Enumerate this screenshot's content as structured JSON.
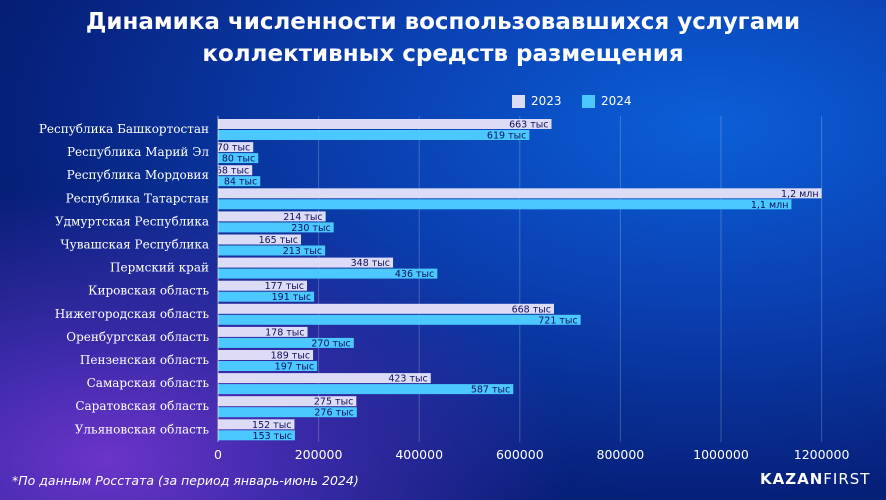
{
  "title_line1": "Динамика численности воспользовавшихся услугами",
  "title_line2": "коллективных средств размещения",
  "footnote": "*По данным Росстата (за период январь-июнь 2024)",
  "logo": {
    "part1": "KAZAN",
    "part2": "FIRST"
  },
  "colors": {
    "s2023": "#dcdcf7",
    "s2024": "#4bc8ff"
  },
  "chart_data": {
    "type": "bar",
    "orientation": "horizontal",
    "categories": [
      "Республика Башкортостан",
      "Республика Марий Эл",
      "Республика Мордовия",
      "Республика Татарстан",
      "Удмуртская Республика",
      "Чувашская Республика",
      "Пермский край",
      "Кировская область",
      "Нижегородская область",
      "Оренбургская область",
      "Пензенская область",
      "Самарская область",
      "Саратовская область",
      "Ульяновская область"
    ],
    "series": [
      {
        "name": "2023",
        "values": [
          663000,
          70000,
          68000,
          1200000,
          214000,
          165000,
          348000,
          177000,
          668000,
          178000,
          189000,
          423000,
          275000,
          152000
        ],
        "labels": [
          "663 тыс",
          "70 тыс",
          "68 тыс",
          "1,2 млн",
          "214 тыс",
          "165 тыс",
          "348 тыс",
          "177 тыс",
          "668 тыс",
          "178 тыс",
          "189 тыс",
          "423 тыс",
          "275 тыс",
          "152 тыс"
        ]
      },
      {
        "name": "2024",
        "values": [
          619000,
          80000,
          84000,
          1140000,
          230000,
          213000,
          436000,
          191000,
          721000,
          270000,
          197000,
          587000,
          276000,
          153000
        ],
        "labels": [
          "619 тыс",
          "80 тыс",
          "84 тыс",
          "1,1 млн",
          "230 тыс",
          "213 тыс",
          "436 тыс",
          "191 тыс",
          "721 тыс",
          "270 тыс",
          "197 тыс",
          "587 тыс",
          "276 тыс",
          "153 тыс"
        ]
      }
    ],
    "xticks": [
      0,
      200000,
      400000,
      600000,
      800000,
      1000000,
      1200000
    ],
    "xlim": [
      0,
      1330000
    ],
    "grid": true,
    "legend_position": "top-right"
  }
}
